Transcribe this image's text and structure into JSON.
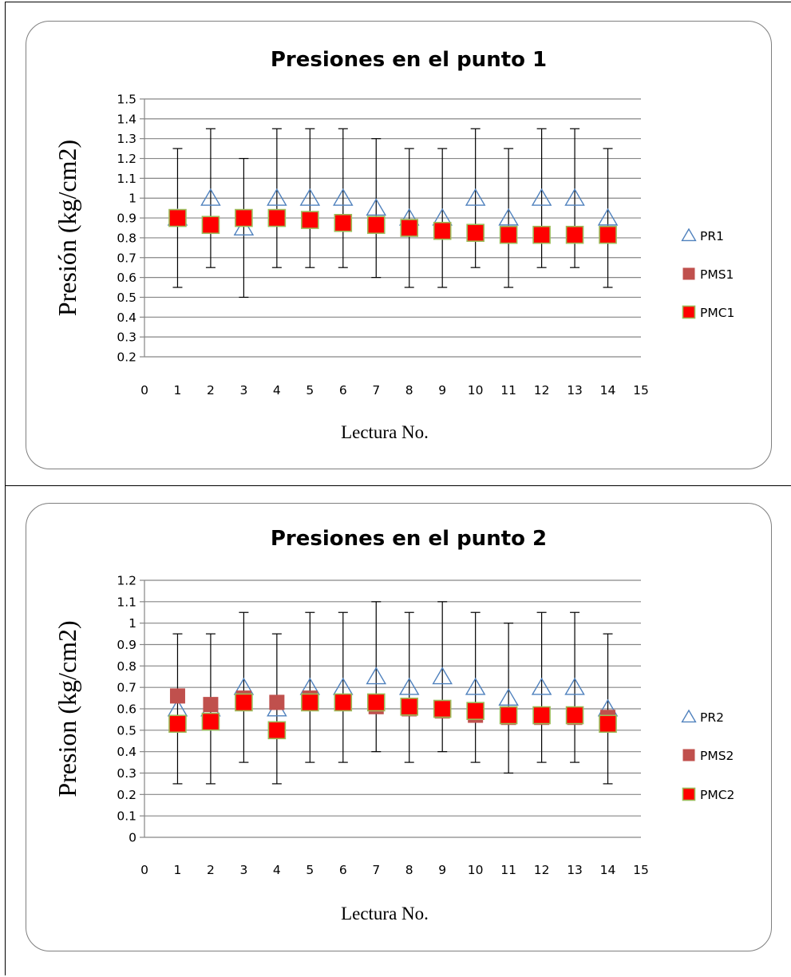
{
  "chart_data": [
    {
      "type": "scatter",
      "title": "Presiones en el punto 1",
      "xlabel": "Lectura No.",
      "ylabel": "Presión (kg/cm2)",
      "xlim": [
        0,
        15
      ],
      "ylim": [
        0.2,
        1.5
      ],
      "xticks": [
        "0",
        "1",
        "2",
        "3",
        "4",
        "5",
        "6",
        "7",
        "8",
        "9",
        "10",
        "11",
        "12",
        "13",
        "14",
        "15"
      ],
      "yticks": [
        "0.2",
        "0.3",
        "0.4",
        "0.5",
        "0.6",
        "0.7",
        "0.8",
        "0.9",
        "1",
        "1.1",
        "1.2",
        "1.3",
        "1.4",
        "1.5"
      ],
      "x": [
        1,
        2,
        3,
        4,
        5,
        6,
        7,
        8,
        9,
        10,
        11,
        12,
        13,
        14
      ],
      "grid": "horizontal",
      "legend_position": "right",
      "series": [
        {
          "name": "PR1",
          "marker": "open-triangle",
          "color": "#4f81bd",
          "values": [
            0.9,
            1.0,
            0.85,
            1.0,
            1.0,
            1.0,
            0.95,
            0.9,
            0.9,
            1.0,
            0.9,
            1.0,
            1.0,
            0.9
          ],
          "error_low": [
            0.55,
            0.65,
            0.5,
            0.65,
            0.65,
            0.65,
            0.6,
            0.55,
            0.55,
            0.65,
            0.55,
            0.65,
            0.65,
            0.55
          ],
          "error_high": [
            1.25,
            1.35,
            1.2,
            1.35,
            1.35,
            1.35,
            1.3,
            1.25,
            1.25,
            1.35,
            1.25,
            1.35,
            1.35,
            1.25
          ]
        },
        {
          "name": "PMS1",
          "marker": "square",
          "color": "#c0504d",
          "values": [
            0.9,
            0.87,
            0.9,
            0.9,
            0.89,
            0.88,
            0.87,
            0.85,
            0.84,
            0.83,
            0.82,
            0.82,
            0.82,
            0.82
          ]
        },
        {
          "name": "PMC1",
          "marker": "square-outlined",
          "color": "#ff0000",
          "edge": "#9bbb59",
          "values": [
            0.9,
            0.865,
            0.9,
            0.9,
            0.89,
            0.875,
            0.865,
            0.85,
            0.835,
            0.825,
            0.815,
            0.815,
            0.815,
            0.815
          ]
        }
      ]
    },
    {
      "type": "scatter",
      "title": "Presiones en el punto 2",
      "xlabel": "Lectura No.",
      "ylabel": "Presion (kg/cm2)",
      "xlim": [
        0,
        15
      ],
      "ylim": [
        0,
        1.2
      ],
      "xticks": [
        "0",
        "1",
        "2",
        "3",
        "4",
        "5",
        "6",
        "7",
        "8",
        "9",
        "10",
        "11",
        "12",
        "13",
        "14",
        "15"
      ],
      "yticks": [
        "0",
        "0.1",
        "0.2",
        "0.3",
        "0.4",
        "0.5",
        "0.6",
        "0.7",
        "0.8",
        "0.9",
        "1",
        "1.1",
        "1.2"
      ],
      "x": [
        1,
        2,
        3,
        4,
        5,
        6,
        7,
        8,
        9,
        10,
        11,
        12,
        13,
        14
      ],
      "grid": "horizontal",
      "legend_position": "right",
      "series": [
        {
          "name": "PR2",
          "marker": "open-triangle",
          "color": "#4f81bd",
          "values": [
            0.6,
            0.6,
            0.7,
            0.6,
            0.7,
            0.7,
            0.75,
            0.7,
            0.75,
            0.7,
            0.65,
            0.7,
            0.7,
            0.6
          ],
          "error_low": [
            0.25,
            0.25,
            0.35,
            0.25,
            0.35,
            0.35,
            0.4,
            0.35,
            0.4,
            0.35,
            0.3,
            0.35,
            0.35,
            0.25
          ],
          "error_high": [
            0.95,
            0.95,
            1.05,
            0.95,
            1.05,
            1.05,
            1.1,
            1.05,
            1.1,
            1.05,
            1.0,
            1.05,
            1.05,
            0.95
          ]
        },
        {
          "name": "PMS2",
          "marker": "square",
          "color": "#c0504d",
          "values": [
            0.66,
            0.62,
            0.65,
            0.63,
            0.65,
            0.63,
            0.61,
            0.6,
            0.59,
            0.57,
            0.56,
            0.56,
            0.56,
            0.56
          ]
        },
        {
          "name": "PMC2",
          "marker": "square-outlined",
          "color": "#ff0000",
          "edge": "#9bbb59",
          "values": [
            0.53,
            0.54,
            0.63,
            0.5,
            0.63,
            0.63,
            0.63,
            0.61,
            0.6,
            0.59,
            0.57,
            0.57,
            0.57,
            0.53
          ]
        }
      ]
    }
  ]
}
